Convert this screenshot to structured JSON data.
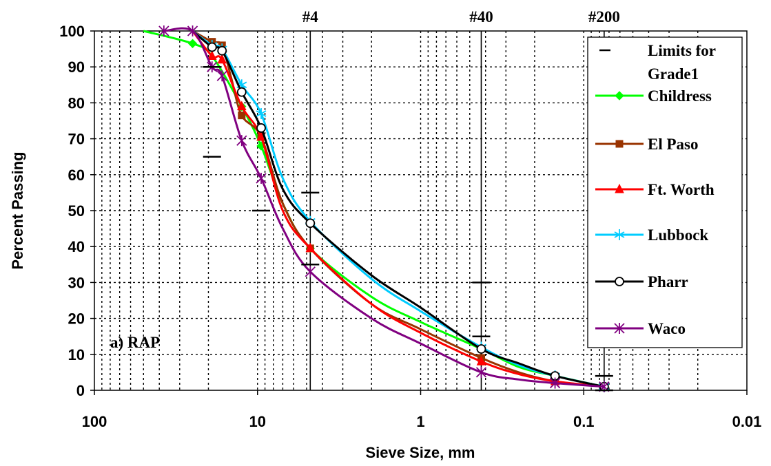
{
  "chart_data": {
    "type": "line",
    "xlabel": "Sieve Size, mm",
    "ylabel": "Percent Passing",
    "x_scale": "log",
    "x_reversed": true,
    "xlim": [
      100,
      0.01
    ],
    "ylim": [
      0,
      100
    ],
    "x_tick_labels": [
      "100",
      "10",
      "1",
      "0.1",
      "0.01"
    ],
    "x_ticks": [
      100,
      10,
      1,
      0.1,
      0.01
    ],
    "y_ticks": [
      0,
      10,
      20,
      30,
      40,
      50,
      60,
      70,
      80,
      90,
      100
    ],
    "grid": "dotted at minor log divisions and every 10%",
    "sieve_lines": [
      {
        "label": "#4",
        "x": 4.75
      },
      {
        "label": "#40",
        "x": 0.425
      },
      {
        "label": "#200",
        "x": 0.075
      }
    ],
    "annotation": "a) RAP",
    "legend_position": "right",
    "limits_series": {
      "name": "Limits for Grade1",
      "color": "#000000",
      "points": [
        {
          "x": 19,
          "y": 90
        },
        {
          "x": 19,
          "y": 65
        },
        {
          "x": 9.5,
          "y": 50
        },
        {
          "x": 4.75,
          "y": 55
        },
        {
          "x": 4.75,
          "y": 35
        },
        {
          "x": 0.425,
          "y": 30
        },
        {
          "x": 0.425,
          "y": 15
        },
        {
          "x": 0.075,
          "y": 0
        },
        {
          "x": 0.075,
          "y": 4
        }
      ]
    },
    "series": [
      {
        "name": "Childress",
        "color": "#00ff00",
        "marker": "diamond",
        "points": [
          {
            "x": 25,
            "y": 96.5
          },
          {
            "x": 12.5,
            "y": 79
          },
          {
            "x": 9.5,
            "y": 68
          },
          {
            "x": 4.75,
            "y": 39.5
          },
          {
            "x": 0.425,
            "y": 11.5
          },
          {
            "x": 0.15,
            "y": 4
          },
          {
            "x": 0.075,
            "y": 1
          }
        ],
        "curve": [
          {
            "x": 50,
            "y": 100
          },
          {
            "x": 25,
            "y": 96.5
          },
          {
            "x": 19,
            "y": 93
          },
          {
            "x": 12.5,
            "y": 79
          },
          {
            "x": 9.5,
            "y": 68
          },
          {
            "x": 7,
            "y": 52
          },
          {
            "x": 4.75,
            "y": 39.5
          },
          {
            "x": 2,
            "y": 26
          },
          {
            "x": 1,
            "y": 19
          },
          {
            "x": 0.425,
            "y": 11.5
          },
          {
            "x": 0.25,
            "y": 6.5
          },
          {
            "x": 0.15,
            "y": 4
          },
          {
            "x": 0.075,
            "y": 1
          }
        ]
      },
      {
        "name": "El Paso",
        "color": "#993300",
        "marker": "square",
        "points": [
          {
            "x": 19,
            "y": 97
          },
          {
            "x": 16.5,
            "y": 96
          },
          {
            "x": 12.5,
            "y": 76.5
          },
          {
            "x": 9.5,
            "y": 70.5
          },
          {
            "x": 4.75,
            "y": 39.5
          },
          {
            "x": 0.425,
            "y": 9
          },
          {
            "x": 0.15,
            "y": 2.5
          },
          {
            "x": 0.075,
            "y": 1
          }
        ],
        "curve": [
          {
            "x": 25,
            "y": 100
          },
          {
            "x": 19,
            "y": 97
          },
          {
            "x": 16.5,
            "y": 96
          },
          {
            "x": 14.5,
            "y": 87
          },
          {
            "x": 12.5,
            "y": 76.5
          },
          {
            "x": 9.5,
            "y": 70.5
          },
          {
            "x": 7,
            "y": 52
          },
          {
            "x": 4.75,
            "y": 39.5
          },
          {
            "x": 2,
            "y": 24
          },
          {
            "x": 1,
            "y": 17
          },
          {
            "x": 0.425,
            "y": 9
          },
          {
            "x": 0.25,
            "y": 5
          },
          {
            "x": 0.15,
            "y": 2.5
          },
          {
            "x": 0.075,
            "y": 1
          }
        ]
      },
      {
        "name": "Ft. Worth",
        "color": "#ff0000",
        "marker": "triangle",
        "points": [
          {
            "x": 19,
            "y": 93
          },
          {
            "x": 16.5,
            "y": 92
          },
          {
            "x": 12.5,
            "y": 79
          },
          {
            "x": 9.5,
            "y": 70.5
          },
          {
            "x": 4.75,
            "y": 39.5
          },
          {
            "x": 0.425,
            "y": 8
          },
          {
            "x": 0.15,
            "y": 2.5
          },
          {
            "x": 0.075,
            "y": 1
          }
        ],
        "curve": [
          {
            "x": 25,
            "y": 100
          },
          {
            "x": 19,
            "y": 93
          },
          {
            "x": 16.5,
            "y": 92
          },
          {
            "x": 12.5,
            "y": 79
          },
          {
            "x": 9.5,
            "y": 70.5
          },
          {
            "x": 7,
            "y": 50
          },
          {
            "x": 4.75,
            "y": 39.5
          },
          {
            "x": 2,
            "y": 24
          },
          {
            "x": 1,
            "y": 16
          },
          {
            "x": 0.425,
            "y": 8
          },
          {
            "x": 0.25,
            "y": 4.5
          },
          {
            "x": 0.15,
            "y": 2.5
          },
          {
            "x": 0.075,
            "y": 1
          }
        ]
      },
      {
        "name": "Lubbock",
        "color": "#00ccff",
        "marker": "asterisk",
        "points": [
          {
            "x": 19,
            "y": 96
          },
          {
            "x": 16.5,
            "y": 95
          },
          {
            "x": 12.5,
            "y": 85
          },
          {
            "x": 9.5,
            "y": 77
          },
          {
            "x": 4.75,
            "y": 47
          },
          {
            "x": 0.425,
            "y": 12
          },
          {
            "x": 0.15,
            "y": 4
          },
          {
            "x": 0.075,
            "y": 1
          }
        ],
        "curve": [
          {
            "x": 25,
            "y": 100
          },
          {
            "x": 19,
            "y": 96
          },
          {
            "x": 16.5,
            "y": 95
          },
          {
            "x": 12.5,
            "y": 85
          },
          {
            "x": 9.5,
            "y": 77
          },
          {
            "x": 7,
            "y": 59
          },
          {
            "x": 4.75,
            "y": 47
          },
          {
            "x": 2,
            "y": 31
          },
          {
            "x": 1,
            "y": 22
          },
          {
            "x": 0.425,
            "y": 12
          },
          {
            "x": 0.25,
            "y": 7
          },
          {
            "x": 0.15,
            "y": 4
          },
          {
            "x": 0.075,
            "y": 1
          }
        ]
      },
      {
        "name": "Pharr",
        "color": "#000000",
        "marker": "circle",
        "points": [
          {
            "x": 19,
            "y": 95.5
          },
          {
            "x": 16.5,
            "y": 94.5
          },
          {
            "x": 12.5,
            "y": 83
          },
          {
            "x": 9.5,
            "y": 73
          },
          {
            "x": 4.75,
            "y": 46.5
          },
          {
            "x": 0.425,
            "y": 11.5
          },
          {
            "x": 0.15,
            "y": 4
          },
          {
            "x": 0.075,
            "y": 1
          }
        ],
        "curve": [
          {
            "x": 25,
            "y": 100
          },
          {
            "x": 19,
            "y": 95.5
          },
          {
            "x": 16.5,
            "y": 94.5
          },
          {
            "x": 12.5,
            "y": 83
          },
          {
            "x": 9.5,
            "y": 73
          },
          {
            "x": 7,
            "y": 56
          },
          {
            "x": 4.75,
            "y": 46.5
          },
          {
            "x": 2,
            "y": 32
          },
          {
            "x": 1,
            "y": 23
          },
          {
            "x": 0.425,
            "y": 11.5
          },
          {
            "x": 0.25,
            "y": 7.5
          },
          {
            "x": 0.15,
            "y": 4
          },
          {
            "x": 0.075,
            "y": 1
          }
        ]
      },
      {
        "name": "Waco",
        "color": "#800080",
        "marker": "x-star",
        "points": [
          {
            "x": 37.5,
            "y": 100
          },
          {
            "x": 25,
            "y": 100
          },
          {
            "x": 19,
            "y": 90
          },
          {
            "x": 16.5,
            "y": 87.5
          },
          {
            "x": 12.5,
            "y": 69.5
          },
          {
            "x": 9.5,
            "y": 59
          },
          {
            "x": 4.75,
            "y": 33
          },
          {
            "x": 0.425,
            "y": 5
          },
          {
            "x": 0.15,
            "y": 2
          },
          {
            "x": 0.075,
            "y": 1
          }
        ],
        "curve": [
          {
            "x": 37.5,
            "y": 100
          },
          {
            "x": 25,
            "y": 100
          },
          {
            "x": 19,
            "y": 90
          },
          {
            "x": 16.5,
            "y": 87.5
          },
          {
            "x": 12.5,
            "y": 69.5
          },
          {
            "x": 9.5,
            "y": 59
          },
          {
            "x": 7,
            "y": 45
          },
          {
            "x": 4.75,
            "y": 33
          },
          {
            "x": 2,
            "y": 20
          },
          {
            "x": 1,
            "y": 13
          },
          {
            "x": 0.425,
            "y": 5
          },
          {
            "x": 0.25,
            "y": 3
          },
          {
            "x": 0.15,
            "y": 2
          },
          {
            "x": 0.075,
            "y": 1
          }
        ]
      }
    ]
  }
}
